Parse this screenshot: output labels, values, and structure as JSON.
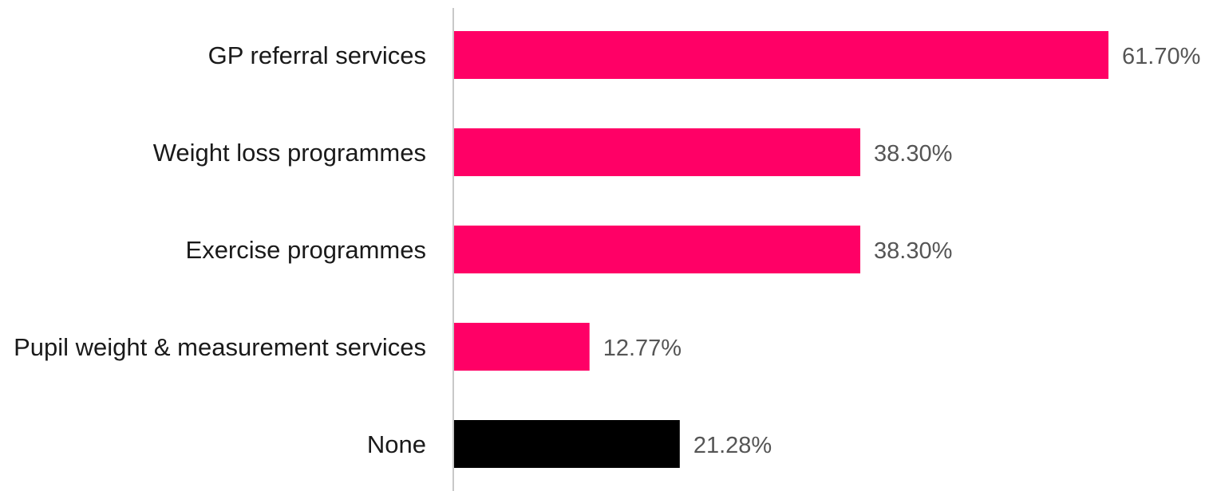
{
  "chart_data": {
    "type": "bar",
    "orientation": "horizontal",
    "categories": [
      "GP referral services",
      "Weight loss programmes",
      "Exercise programmes",
      "Pupil weight & measurement services",
      "None"
    ],
    "values": [
      61.7,
      38.3,
      38.3,
      12.77,
      21.28
    ],
    "value_labels": [
      "61.70%",
      "38.30%",
      "38.30%",
      "12.77%",
      "21.28%"
    ],
    "bar_colors": [
      "#ff0066",
      "#ff0066",
      "#ff0066",
      "#ff0066",
      "#000000"
    ],
    "unit": "%",
    "xlim": [
      0,
      70
    ],
    "title": "",
    "xlabel": "",
    "ylabel": "",
    "grid": false,
    "legend": "none"
  },
  "colors": {
    "accent": "#ff0066",
    "none_bar": "#000000",
    "axis": "#c8c8c8"
  }
}
